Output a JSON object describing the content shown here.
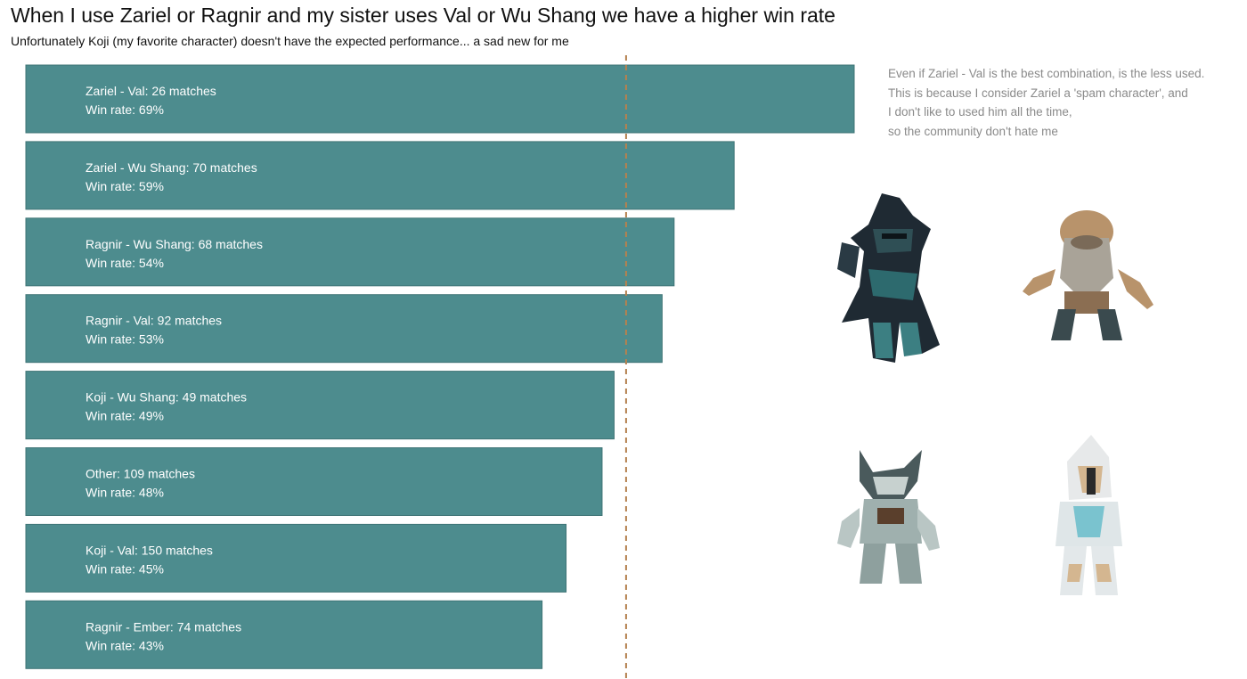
{
  "title": "When I use Zariel or Ragnir and my sister uses Val or Wu Shang we have a higher win rate",
  "subtitle": "Unfortunately Koji (my favorite character) doesn't have the expected performance... a sad new for me",
  "annotation": {
    "lines": [
      "Even if Zariel - Val is the best combination, is the less used.",
      "This is because I consider Zariel a 'spam character', and",
      "I don't like to used him all the time,",
      "so the community don't hate me"
    ]
  },
  "colors": {
    "bar": "#4d8c8e",
    "bar_border": "#3f7476",
    "reference": "#b5814f",
    "annotation": "#8a8a8a"
  },
  "characters": [
    "ninja-character-icon",
    "bearded-monk-character-icon",
    "dragon-armor-character-icon",
    "knight-character-icon"
  ],
  "chart_data": {
    "type": "bar",
    "orientation": "horizontal",
    "title": "When I use Zariel or Ragnir and my sister uses Val or Wu Shang we have a higher win rate",
    "xlabel": "",
    "ylabel": "",
    "xlim": [
      0,
      69
    ],
    "reference_line": {
      "value": 50,
      "style": "dashed"
    },
    "categories": [
      "Zariel - Val",
      "Zariel - Wu Shang",
      "Ragnir - Wu Shang",
      "Ragnir - Val",
      "Koji - Wu Shang",
      "Other",
      "Koji - Val",
      "Ragnir - Ember"
    ],
    "matches": [
      26,
      70,
      68,
      92,
      49,
      109,
      150,
      74
    ],
    "values": [
      69,
      59,
      54,
      53,
      49,
      48,
      45,
      43
    ],
    "labels": [
      [
        "Zariel - Val: 26 matches",
        "Win rate: 69%"
      ],
      [
        "Zariel - Wu Shang: 70 matches",
        "Win rate: 59%"
      ],
      [
        "Ragnir - Wu Shang: 68 matches",
        "Win rate: 54%"
      ],
      [
        "Ragnir - Val: 92 matches",
        "Win rate: 53%"
      ],
      [
        "Koji - Wu Shang: 49 matches",
        "Win rate: 49%"
      ],
      [
        "Other: 109 matches",
        "Win rate: 48%"
      ],
      [
        "Koji - Val: 150 matches",
        "Win rate: 45%"
      ],
      [
        "Ragnir - Ember: 74 matches",
        "Win rate: 43%"
      ]
    ]
  }
}
